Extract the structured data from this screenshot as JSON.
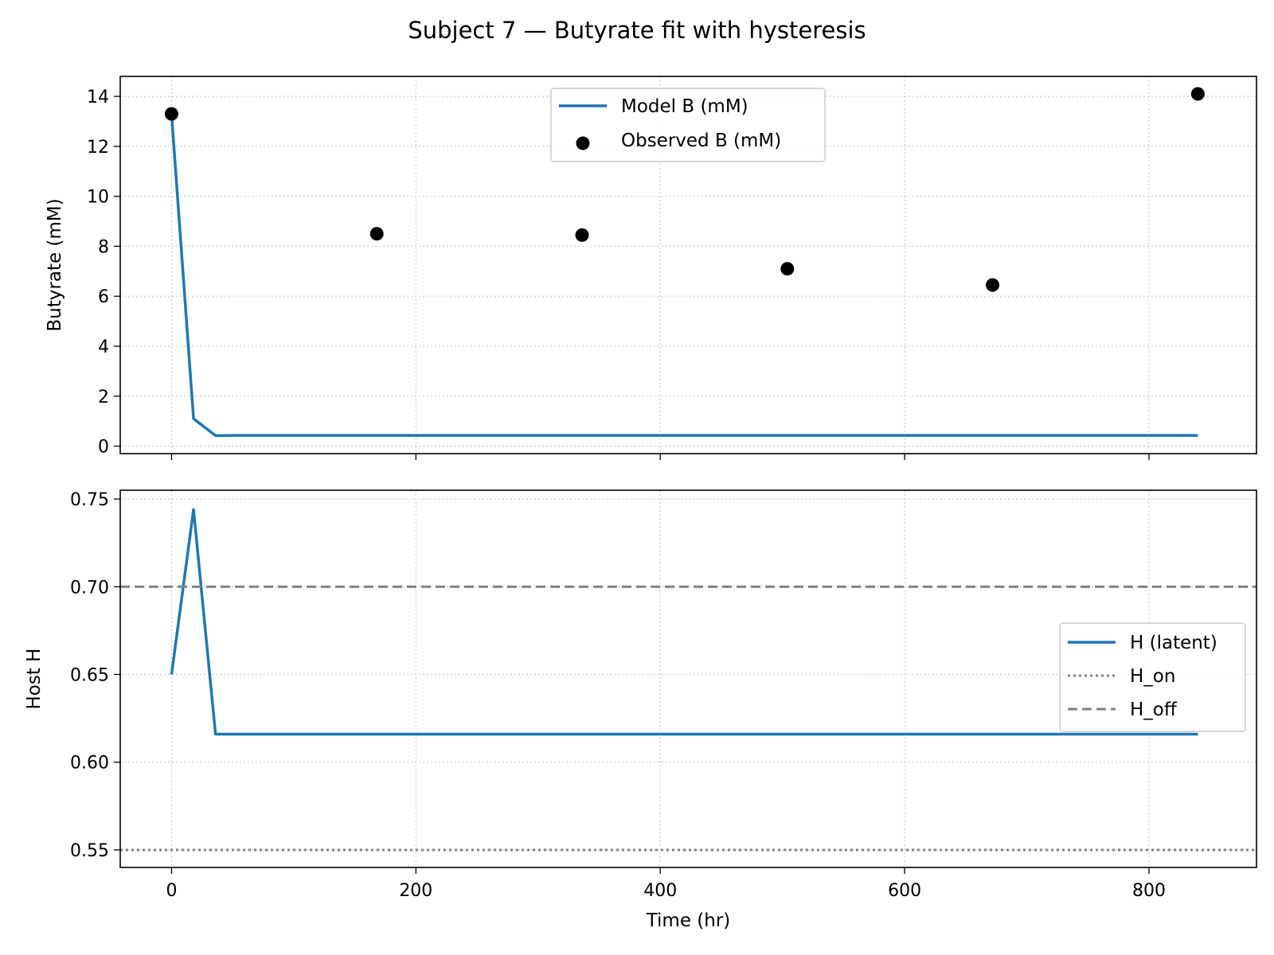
{
  "figure": {
    "title": "Subject 7 — Butyrate fit with hysteresis",
    "colors": {
      "model": "#1f77b4",
      "observed": "#000000",
      "threshold": "#808080",
      "grid": "#cccccc"
    }
  },
  "chart_data": [
    {
      "type": "line",
      "xlabel": "",
      "ylabel": "Butyrate (mM)",
      "xlim": [
        -42,
        888
      ],
      "ylim": [
        -0.3,
        14.8
      ],
      "x_ticks": [
        0,
        200,
        400,
        600,
        800
      ],
      "y_ticks": [
        0,
        2,
        4,
        6,
        8,
        10,
        12,
        14
      ],
      "grid": true,
      "legend": "upper-center",
      "series": [
        {
          "name": "Model B (mM)",
          "kind": "line",
          "x": [
            0,
            18,
            36,
            54,
            72,
            90,
            840
          ],
          "y": [
            13.3,
            1.1,
            0.42,
            0.43,
            0.43,
            0.43,
            0.43
          ]
        },
        {
          "name": "Observed B (mM)",
          "kind": "scatter",
          "x": [
            0,
            168,
            336,
            504,
            672,
            840
          ],
          "y": [
            13.3,
            8.5,
            8.45,
            7.1,
            6.45,
            14.1
          ]
        }
      ]
    },
    {
      "type": "line",
      "xlabel": "Time (hr)",
      "ylabel": "Host H",
      "xlim": [
        -42,
        888
      ],
      "ylim": [
        0.54,
        0.755
      ],
      "x_ticks": [
        0,
        200,
        400,
        600,
        800
      ],
      "y_ticks": [
        "0.55",
        "0.60",
        "0.65",
        "0.70",
        "0.75"
      ],
      "grid": true,
      "legend": "center-right",
      "series": [
        {
          "name": "H (latent)",
          "kind": "line",
          "x": [
            0,
            18,
            36,
            54,
            840
          ],
          "y": [
            0.65,
            0.744,
            0.616,
            0.616,
            0.616
          ]
        },
        {
          "name": "H_on",
          "kind": "hline",
          "style": "dotted",
          "y": 0.55
        },
        {
          "name": "H_off",
          "kind": "hline",
          "style": "dashed",
          "y": 0.7
        }
      ]
    }
  ]
}
